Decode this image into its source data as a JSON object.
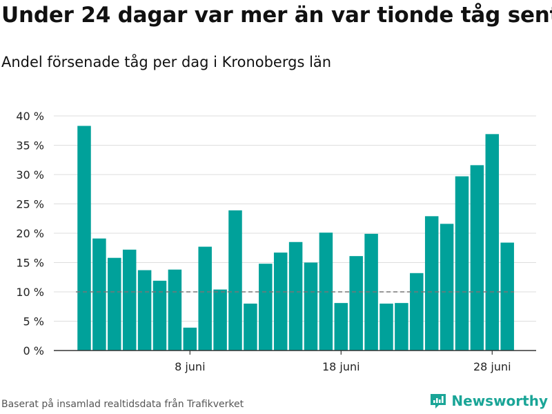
{
  "header": {
    "title": "Under 24 dagar var mer än var tionde tåg sent",
    "subtitle": "Andel försenade tåg per dag i Kronobergs län"
  },
  "footer": {
    "source": "Baserat på insamlad realtidsdata från Trafikverket",
    "brand": "Newsworthy"
  },
  "colors": {
    "bar": "#00a19a",
    "grid": "#dddddd",
    "reference_line": "#777777",
    "brand": "#1aa597"
  },
  "chart_data": {
    "type": "bar",
    "title": "Under 24 dagar var mer än var tionde tåg sent",
    "subtitle": "Andel försenade tåg per dag i Kronobergs län",
    "x_start_day": 1,
    "x_tick_days": [
      8,
      18,
      28
    ],
    "x_tick_labels": [
      "8 juni",
      "18 juni",
      "28 juni"
    ],
    "values": [
      38.3,
      19.1,
      15.8,
      17.2,
      13.7,
      11.9,
      13.8,
      3.9,
      17.7,
      10.4,
      23.9,
      8.0,
      14.8,
      16.7,
      18.5,
      15.0,
      20.1,
      8.1,
      16.1,
      19.9,
      8.0,
      8.1,
      13.2,
      22.9,
      21.6,
      29.7,
      31.6,
      36.9,
      18.4
    ],
    "y_ticks": [
      0,
      5,
      10,
      15,
      20,
      25,
      30,
      35,
      40
    ],
    "y_tick_labels": [
      "0 %",
      "5 %",
      "10 %",
      "15 %",
      "20 %",
      "25 %",
      "30 %",
      "35 %",
      "40 %"
    ],
    "ylim": [
      0,
      40
    ],
    "reference_value": 10,
    "grid": true,
    "legend": "none"
  }
}
